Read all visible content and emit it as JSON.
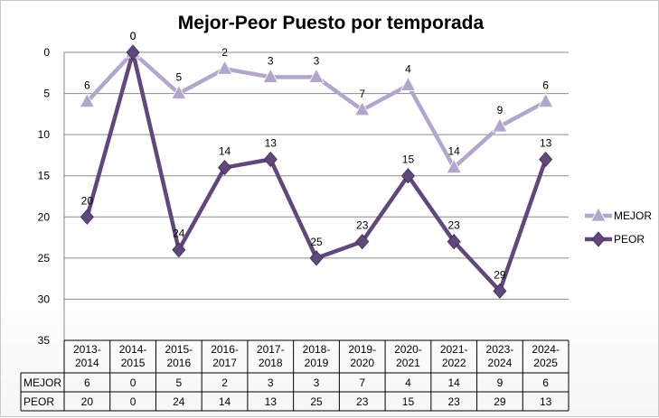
{
  "chart_data": {
    "type": "line",
    "title": "Mejor-Peor Puesto por temporada",
    "categories": [
      "2013-2014",
      "2014-2015",
      "2015-2016",
      "2016-2017",
      "2017-2018",
      "2018-2019",
      "2019-2020",
      "2020-2021",
      "2021-2022",
      "2023-2024",
      "2024-2025"
    ],
    "series": [
      {
        "name": "MEJOR",
        "values": [
          6,
          0,
          5,
          2,
          3,
          3,
          7,
          4,
          14,
          9,
          6
        ],
        "color": "#b3a6cc",
        "marker": "triangle"
      },
      {
        "name": "PEOR",
        "values": [
          20,
          0,
          24,
          14,
          13,
          25,
          23,
          15,
          23,
          29,
          13
        ],
        "color": "#60497a",
        "marker": "diamond"
      }
    ],
    "yaxis": {
      "min": 0,
      "max": 35,
      "step": 5,
      "inverted": true,
      "ticks": [
        "0",
        "5",
        "10",
        "15",
        "20",
        "25",
        "30",
        "35"
      ]
    },
    "grid": true,
    "legend": "right",
    "data_table": true
  }
}
